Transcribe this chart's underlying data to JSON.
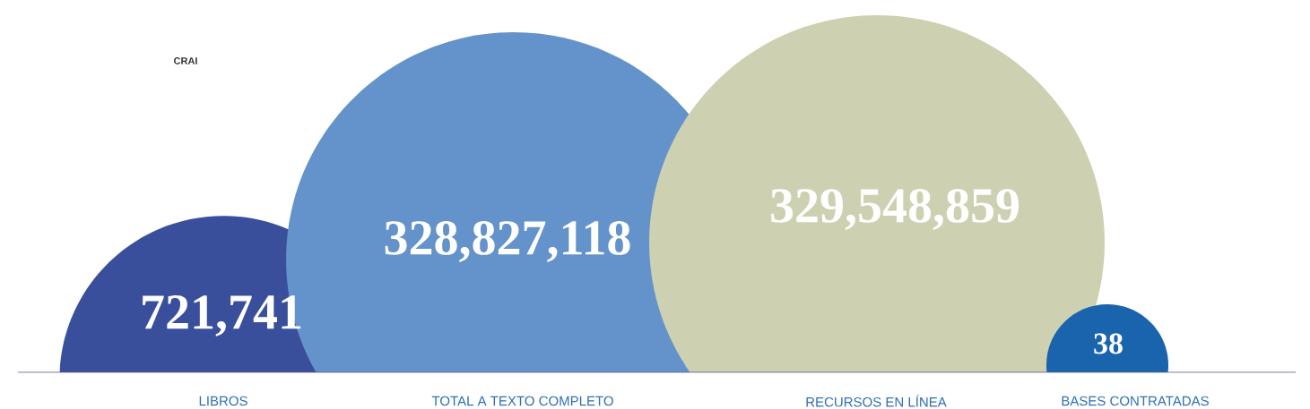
{
  "chart_data": {
    "type": "other",
    "categories": [
      "LIBROS",
      "TOTAL A TEXTO COMPLETO",
      "RECURSOS EN LÍNEA",
      "BASES CONTRATADAS"
    ],
    "values": [
      721741,
      328827118,
      329548859,
      38
    ],
    "colors": [
      "#394f9c",
      "#6492ca",
      "#cdd1b1",
      "#1a64ad"
    ],
    "value_labels": [
      "721,741",
      "328,827,118",
      "329,548,859",
      "38"
    ],
    "annotations": [
      "CRAI"
    ]
  }
}
